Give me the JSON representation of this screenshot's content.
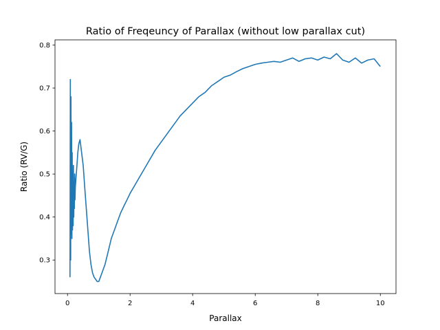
{
  "chart_data": {
    "type": "line",
    "title": "Ratio of Freqeuncy of Parallax (without low parallax cut)",
    "xlabel": "Parallax",
    "ylabel": "Ratio (RV/G)",
    "xlim": [
      -0.4,
      10.5
    ],
    "ylim": [
      0.222,
      0.812
    ],
    "xticks": [
      0,
      2,
      4,
      6,
      8,
      10
    ],
    "xtick_labels": [
      "0",
      "2",
      "4",
      "6",
      "8",
      "10"
    ],
    "yticks": [
      0.3,
      0.4,
      0.5,
      0.6,
      0.7,
      0.8
    ],
    "ytick_labels": [
      "0.3",
      "0.4",
      "0.5",
      "0.6",
      "0.7",
      "0.8"
    ],
    "grid": false,
    "line_color": "#1f77b4",
    "series": [
      {
        "x": [
          0.08,
          0.09,
          0.1,
          0.11,
          0.12,
          0.13,
          0.14,
          0.15,
          0.16,
          0.17,
          0.18,
          0.19,
          0.2,
          0.21,
          0.22,
          0.23,
          0.24,
          0.25,
          0.27,
          0.3,
          0.33,
          0.36,
          0.4,
          0.45,
          0.5,
          0.55,
          0.6,
          0.65,
          0.7,
          0.75,
          0.8,
          0.85,
          0.9,
          0.95,
          1.0,
          1.05,
          1.1,
          1.2,
          1.3,
          1.4,
          1.5,
          1.6,
          1.7,
          1.8,
          1.9,
          2.0,
          2.2,
          2.4,
          2.6,
          2.8,
          3.0,
          3.2,
          3.4,
          3.6,
          3.8,
          4.0,
          4.2,
          4.4,
          4.6,
          4.8,
          5.0,
          5.2,
          5.4,
          5.6,
          5.8,
          6.0,
          6.2,
          6.4,
          6.6,
          6.8,
          7.0,
          7.2,
          7.4,
          7.6,
          7.8,
          8.0,
          8.2,
          8.4,
          8.6,
          8.8,
          9.0,
          9.2,
          9.4,
          9.6,
          9.8,
          10.0
        ],
        "y": [
          0.26,
          0.72,
          0.3,
          0.68,
          0.36,
          0.62,
          0.35,
          0.55,
          0.37,
          0.5,
          0.38,
          0.52,
          0.4,
          0.48,
          0.42,
          0.5,
          0.44,
          0.47,
          0.49,
          0.52,
          0.55,
          0.57,
          0.58,
          0.55,
          0.52,
          0.47,
          0.42,
          0.37,
          0.32,
          0.29,
          0.27,
          0.26,
          0.255,
          0.25,
          0.25,
          0.26,
          0.27,
          0.29,
          0.32,
          0.35,
          0.37,
          0.39,
          0.41,
          0.425,
          0.44,
          0.455,
          0.48,
          0.505,
          0.53,
          0.555,
          0.575,
          0.595,
          0.615,
          0.635,
          0.65,
          0.665,
          0.68,
          0.69,
          0.705,
          0.715,
          0.725,
          0.73,
          0.738,
          0.745,
          0.75,
          0.755,
          0.758,
          0.76,
          0.762,
          0.76,
          0.765,
          0.77,
          0.762,
          0.768,
          0.77,
          0.765,
          0.772,
          0.768,
          0.78,
          0.765,
          0.76,
          0.77,
          0.758,
          0.765,
          0.768,
          0.75
        ]
      }
    ]
  }
}
